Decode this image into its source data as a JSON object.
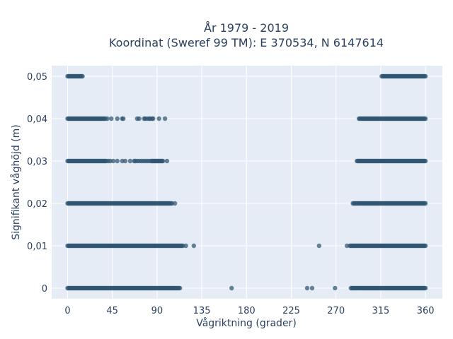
{
  "chart_data": {
    "type": "scatter",
    "title_line1": "År 1979 - 2019",
    "title_line2": "Koordinat (Sweref 99 TM): E 370534, N 6147614",
    "xlabel": "Vågriktning (grader)",
    "ylabel": "Signifikant våghöjd (m)",
    "xlim": [
      -16,
      377
    ],
    "ylim": [
      -0.0025,
      0.0525
    ],
    "xticks": [
      0,
      45,
      90,
      135,
      180,
      225,
      270,
      315,
      360
    ],
    "xtick_labels": [
      "0",
      "45",
      "90",
      "135",
      "180",
      "225",
      "270",
      "315",
      "360"
    ],
    "yticks": [
      0,
      0.01,
      0.02,
      0.03,
      0.04,
      0.05
    ],
    "ytick_labels": [
      "0",
      "0,01",
      "0,02",
      "0,03",
      "0,04",
      "0,05"
    ],
    "grid": true,
    "colors": {
      "marker": "#2f5570",
      "plot_background": "#e5ecf6",
      "grid": "#ffffff",
      "text": "#2a3f5f"
    },
    "series": [
      {
        "x_dense_ranges": [
          [
            0,
            15
          ],
          [
            316,
            360
          ]
        ],
        "y": 0.05,
        "x_isolated": []
      },
      {
        "x_dense_ranges": [
          [
            0,
            38
          ],
          [
            293,
            360
          ]
        ],
        "y": 0.04,
        "x_isolated": [
          40,
          44,
          50,
          55,
          56,
          70,
          72,
          77,
          78,
          80,
          82,
          83,
          85,
          86,
          92,
          98
        ]
      },
      {
        "x_dense_ranges": [
          [
            0,
            39
          ],
          [
            291,
            360
          ]
        ],
        "y": 0.03,
        "x_isolated": [
          41,
          43,
          46,
          50,
          55,
          58,
          63,
          67,
          68,
          70,
          72,
          74,
          76,
          78,
          80,
          82,
          84,
          85,
          86,
          87,
          88,
          89,
          90,
          91,
          92,
          93,
          94,
          95,
          96,
          100
        ]
      },
      {
        "x_dense_ranges": [
          [
            0,
            105
          ],
          [
            287,
            360
          ]
        ],
        "y": 0.02,
        "x_isolated": [
          108
        ]
      },
      {
        "x_dense_ranges": [
          [
            0,
            116
          ],
          [
            284,
            360
          ]
        ],
        "y": 0.01,
        "x_isolated": [
          119,
          127,
          253,
          281
        ]
      },
      {
        "x_dense_ranges": [
          [
            0,
            113
          ],
          [
            285,
            360
          ]
        ],
        "y": 0,
        "x_isolated": [
          165,
          241,
          246,
          269
        ]
      }
    ]
  }
}
